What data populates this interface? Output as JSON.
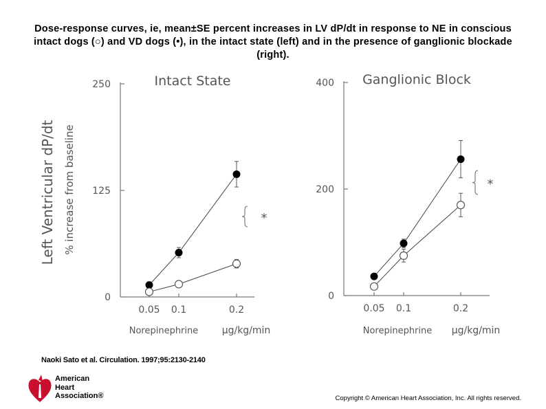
{
  "title": "Dose-response curves, ie, mean±SE percent increases in LV dP/dt in response to NE in conscious intact dogs (○) and VD dogs (•), in the intact state (left) and in the presence of ganglionic blockade (right).",
  "citation": "Naoki Sato et al. Circulation. 1997;95:2130-2140",
  "copyright": "Copyright © American Heart Association, Inc. All rights reserved.",
  "logo": {
    "line1": "American",
    "line2": "Heart",
    "line3": "Association®",
    "color": "#c8102e"
  },
  "colors": {
    "axis": "#777777",
    "filled": "#000000",
    "open": "#555555"
  },
  "y_axis_label_main": "Left Ventricular dP/dt",
  "y_axis_label_sub": "% increase from baseline",
  "x_axis_label": "Norepinephrine",
  "x_axis_unit": "μg/kg/min",
  "significance_marker": "*",
  "chart_data": [
    {
      "type": "line",
      "title": "Intact State",
      "xlabel": "Norepinephrine μg/kg/min",
      "ylabel": "Left Ventricular dP/dt % increase from baseline",
      "x": [
        "0.05",
        "0.1",
        "0.2"
      ],
      "ylim": [
        0,
        250
      ],
      "yticks": [
        "0",
        "125",
        "250"
      ],
      "series": [
        {
          "name": "VD dogs (•)",
          "marker": "filled",
          "values": [
            14,
            52,
            144
          ],
          "errors": [
            3,
            6,
            15
          ]
        },
        {
          "name": "intact dogs (○)",
          "marker": "open",
          "values": [
            6,
            15,
            39
          ],
          "errors": [
            2,
            3,
            5
          ]
        }
      ],
      "annotation": "*"
    },
    {
      "type": "line",
      "title": "Ganglionic Block",
      "xlabel": "Norepinephrine μg/kg/min",
      "ylabel": "",
      "x": [
        "0.05",
        "0.1",
        "0.2"
      ],
      "ylim": [
        0,
        400
      ],
      "yticks": [
        "0",
        "200",
        "400"
      ],
      "series": [
        {
          "name": "VD dogs (•)",
          "marker": "filled",
          "values": [
            36,
            98,
            256
          ],
          "errors": [
            4,
            8,
            35
          ]
        },
        {
          "name": "intact dogs (○)",
          "marker": "open",
          "values": [
            17,
            75,
            170
          ],
          "errors": [
            3,
            12,
            22
          ]
        }
      ],
      "annotation": "*"
    }
  ]
}
